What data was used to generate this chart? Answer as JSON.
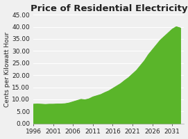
{
  "title": "Price of Residential Electricity",
  "ylabel": "Cents per Kilowatt Hour",
  "xlim": [
    1996,
    2034
  ],
  "ylim": [
    0,
    45
  ],
  "yticks": [
    0.0,
    5.0,
    10.0,
    15.0,
    20.0,
    25.0,
    30.0,
    35.0,
    40.0,
    45.0
  ],
  "xticks": [
    1996,
    2001,
    2006,
    2011,
    2016,
    2021,
    2026,
    2031
  ],
  "years": [
    1996,
    1997,
    1998,
    1999,
    2000,
    2001,
    2002,
    2003,
    2004,
    2005,
    2006,
    2007,
    2008,
    2009,
    2010,
    2011,
    2012,
    2013,
    2014,
    2015,
    2016,
    2017,
    2018,
    2019,
    2020,
    2021,
    2022,
    2023,
    2024,
    2025,
    2026,
    2027,
    2028,
    2029,
    2030,
    2031,
    2032,
    2033
  ],
  "values": [
    8.0,
    8.1,
    8.0,
    7.9,
    8.0,
    8.0,
    8.1,
    8.1,
    8.2,
    8.5,
    9.0,
    9.5,
    10.0,
    9.8,
    10.2,
    11.0,
    11.5,
    12.0,
    12.8,
    13.5,
    14.5,
    15.5,
    16.5,
    17.8,
    19.0,
    20.5,
    22.0,
    24.0,
    26.0,
    28.5,
    30.5,
    32.5,
    34.5,
    36.0,
    37.5,
    39.0,
    40.0,
    39.5
  ],
  "fill_color": "#5ab52a",
  "line_color": "#5ab52a",
  "background_color": "#f0f0f0",
  "plot_bg_color": "#f0f0f0",
  "grid_color": "#ffffff",
  "title_fontsize": 9.5,
  "label_fontsize": 6.5,
  "tick_fontsize": 6.5
}
